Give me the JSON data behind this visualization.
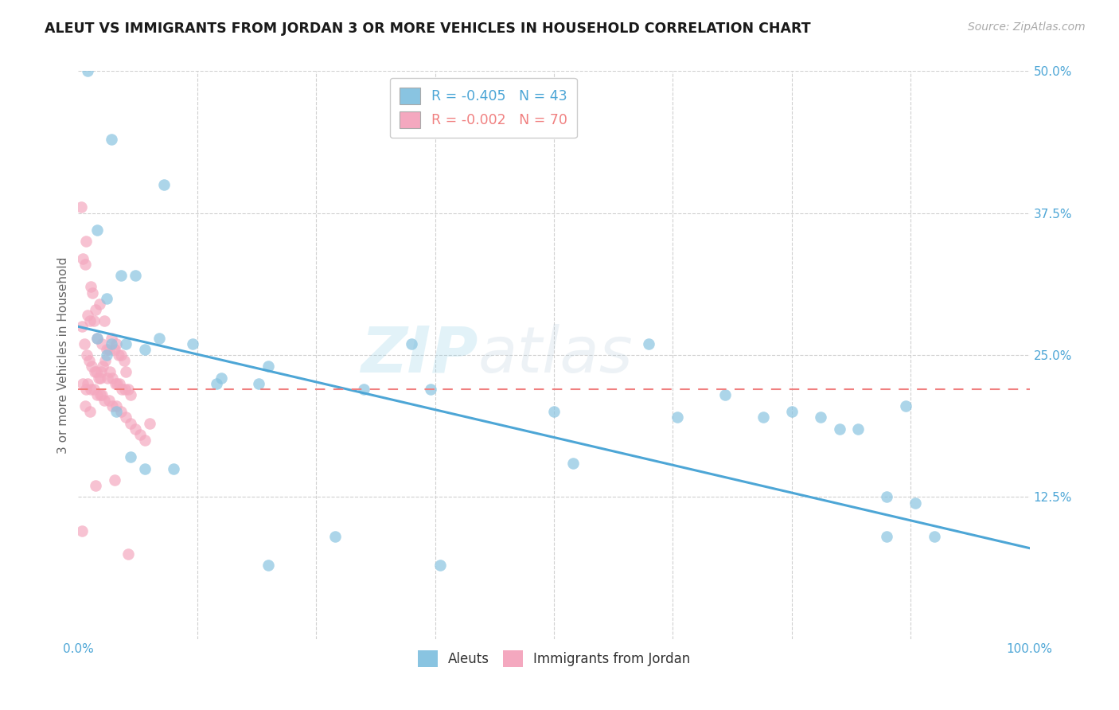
{
  "title": "ALEUT VS IMMIGRANTS FROM JORDAN 3 OR MORE VEHICLES IN HOUSEHOLD CORRELATION CHART",
  "source": "Source: ZipAtlas.com",
  "ylabel": "3 or more Vehicles in Household",
  "xlim": [
    0,
    100
  ],
  "ylim": [
    0,
    50
  ],
  "yticks_right": [
    0,
    12.5,
    25.0,
    37.5,
    50.0
  ],
  "ytick_right_labels": [
    "",
    "12.5%",
    "25.0%",
    "37.5%",
    "50.0%"
  ],
  "legend_R_blue": "R = -0.405",
  "legend_N_blue": "N = 43",
  "legend_R_pink": "R = -0.002",
  "legend_N_pink": "N = 70",
  "blue_color": "#89c4e1",
  "pink_color": "#f4a8bf",
  "blue_line_color": "#4da6d6",
  "pink_line_color": "#f08080",
  "watermark_zip": "ZIP",
  "watermark_atlas": "atlas",
  "blue_x": [
    1.0,
    3.5,
    9.0,
    2.0,
    4.5,
    6.0,
    3.0,
    2.0,
    3.5,
    5.0,
    7.0,
    3.0,
    8.5,
    12.0,
    15.0,
    20.0,
    14.5,
    19.0,
    30.0,
    35.0,
    37.0,
    50.0,
    60.0,
    63.0,
    68.0,
    72.0,
    75.0,
    78.0,
    80.0,
    82.0,
    85.0,
    88.0,
    90.0,
    4.0,
    5.5,
    7.0,
    10.0,
    20.0,
    27.0,
    38.0,
    52.0,
    85.0,
    87.0
  ],
  "blue_y": [
    50.0,
    44.0,
    40.0,
    36.0,
    32.0,
    32.0,
    30.0,
    26.5,
    26.0,
    26.0,
    25.5,
    25.0,
    26.5,
    26.0,
    23.0,
    24.0,
    22.5,
    22.5,
    22.0,
    26.0,
    22.0,
    20.0,
    26.0,
    19.5,
    21.5,
    19.5,
    20.0,
    19.5,
    18.5,
    18.5,
    9.0,
    12.0,
    9.0,
    20.0,
    16.0,
    15.0,
    15.0,
    6.5,
    9.0,
    6.5,
    15.5,
    12.5,
    20.5
  ],
  "pink_x": [
    0.3,
    0.5,
    0.7,
    0.8,
    1.0,
    1.2,
    1.3,
    1.5,
    1.6,
    1.8,
    2.0,
    2.2,
    2.5,
    2.7,
    3.0,
    3.2,
    3.5,
    3.8,
    4.0,
    4.2,
    4.5,
    4.8,
    5.0,
    0.4,
    0.6,
    0.9,
    1.1,
    1.4,
    1.7,
    1.9,
    2.1,
    2.3,
    2.4,
    2.6,
    2.8,
    3.1,
    3.3,
    3.6,
    3.9,
    4.1,
    4.3,
    4.6,
    4.9,
    5.2,
    5.5,
    0.5,
    0.8,
    1.0,
    1.3,
    1.6,
    2.0,
    2.3,
    2.7,
    3.2,
    3.6,
    4.0,
    4.5,
    5.0,
    5.5,
    6.0,
    6.5,
    7.0,
    0.4,
    0.7,
    1.2,
    1.8,
    2.5,
    3.8,
    5.2,
    7.5
  ],
  "pink_y": [
    38.0,
    33.5,
    33.0,
    35.0,
    28.5,
    28.0,
    31.0,
    30.5,
    28.0,
    29.0,
    26.5,
    29.5,
    26.0,
    28.0,
    25.5,
    25.5,
    26.5,
    25.5,
    26.0,
    25.0,
    25.0,
    24.5,
    23.5,
    27.5,
    26.0,
    25.0,
    24.5,
    24.0,
    23.5,
    23.5,
    23.0,
    23.0,
    23.5,
    24.0,
    24.5,
    23.0,
    23.5,
    23.0,
    22.5,
    22.5,
    22.5,
    22.0,
    22.0,
    22.0,
    21.5,
    22.5,
    22.0,
    22.5,
    22.0,
    22.0,
    21.5,
    21.5,
    21.0,
    21.0,
    20.5,
    20.5,
    20.0,
    19.5,
    19.0,
    18.5,
    18.0,
    17.5,
    9.5,
    20.5,
    20.0,
    13.5,
    21.5,
    14.0,
    7.5,
    19.0
  ],
  "blue_trend_x0": 0,
  "blue_trend_x1": 100,
  "blue_trend_y0": 27.5,
  "blue_trend_y1": 8.0,
  "pink_trend_y": 22.0,
  "grid_color": "#d0d0d0",
  "background_color": "#ffffff",
  "title_color": "#1a1a1a",
  "source_color": "#aaaaaa",
  "axis_label_color": "#666666",
  "right_tick_color": "#4da6d6"
}
